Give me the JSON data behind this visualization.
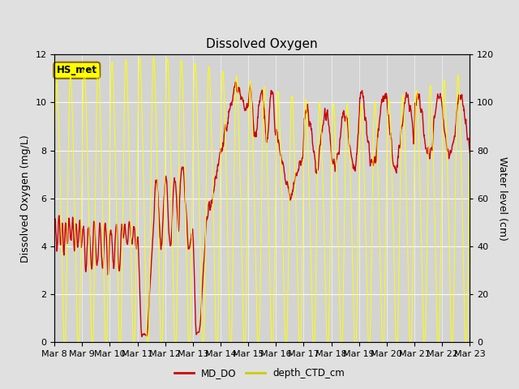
{
  "title": "Dissolved Oxygen",
  "ylabel_left": "Dissolved Oxygen (mg/L)",
  "ylabel_right": "Water level (cm)",
  "ylim_left": [
    0,
    12
  ],
  "ylim_right": [
    0,
    120
  ],
  "yticks_left": [
    0,
    2,
    4,
    6,
    8,
    10,
    12
  ],
  "yticks_right": [
    0,
    20,
    40,
    60,
    80,
    100,
    120
  ],
  "xtick_labels": [
    "Mar 8",
    "Mar 9",
    "Mar 10",
    "Mar 11",
    "Mar 12",
    "Mar 13",
    "Mar 14",
    "Mar 15",
    "Mar 16",
    "Mar 17",
    "Mar 18",
    "Mar 19",
    "Mar 20",
    "Mar 21",
    "Mar 22",
    "Mar 23"
  ],
  "background_color": "#e0e0e0",
  "plot_bg_color": "#d3d3d3",
  "annotation_text": "HS_met",
  "annotation_bg": "#ffff00",
  "annotation_border": "#8B6914",
  "md_do_color": "#cc0000",
  "depth_ctd_color": "#ffff00",
  "legend_md_do_color": "#cc0000",
  "legend_depth_color": "#cccc00",
  "title_fontsize": 11,
  "axis_label_fontsize": 9,
  "tick_fontsize": 8
}
